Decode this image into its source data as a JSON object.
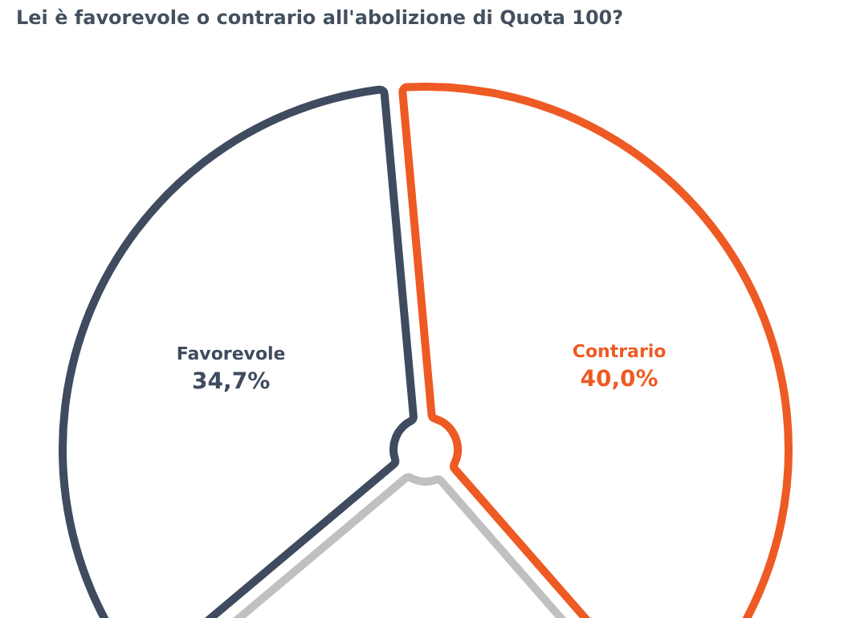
{
  "chart_data": {
    "type": "pie",
    "title": "Lei è favorevole o contrario all'abolizione di Quota 100?",
    "categories": [
      "Favorevole",
      "Contrario",
      null
    ],
    "values": [
      34.7,
      40.0,
      25.3
    ],
    "colors": [
      "#3f4b5e",
      "#ee5a24",
      "#c0c0c0"
    ],
    "value_labels": [
      "34,7%",
      "40,0%",
      null
    ],
    "legend": false
  }
}
